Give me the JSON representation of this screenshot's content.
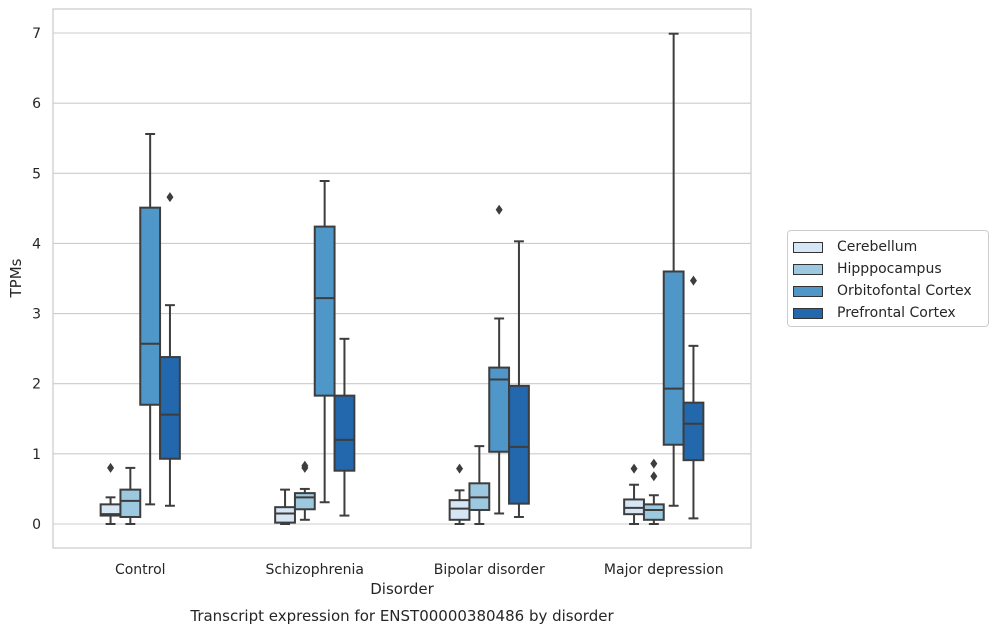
{
  "chart_data": {
    "type": "box",
    "xlabel": "Disorder",
    "ylabel": "TPMs",
    "caption": "Transcript expression for ENST00000380486 by disorder",
    "categories": [
      "Control",
      "Schizophrenia",
      "Bipolar disorder",
      "Major depression"
    ],
    "ylim": [
      -0.33,
      7.35
    ],
    "yticks": [
      0,
      1,
      2,
      3,
      4,
      5,
      6,
      7
    ],
    "grid": "horizontal",
    "legend_position": "right",
    "series": [
      {
        "name": "Cerebellum",
        "color": "#d6e6f4",
        "boxes": [
          {
            "whislo": 0.0,
            "q1": 0.12,
            "med": 0.14,
            "q3": 0.28,
            "whishi": 0.38,
            "fliers": [
              0.8
            ]
          },
          {
            "whislo": 0.0,
            "q1": 0.02,
            "med": 0.15,
            "q3": 0.24,
            "whishi": 0.49,
            "fliers": []
          },
          {
            "whislo": 0.0,
            "q1": 0.06,
            "med": 0.22,
            "q3": 0.34,
            "whishi": 0.48,
            "fliers": [
              0.79
            ]
          },
          {
            "whislo": 0.0,
            "q1": 0.14,
            "med": 0.23,
            "q3": 0.35,
            "whishi": 0.56,
            "fliers": [
              0.79
            ]
          }
        ]
      },
      {
        "name": "Hipppocampus",
        "color": "#9dc9e0",
        "boxes": [
          {
            "whislo": 0.0,
            "q1": 0.1,
            "med": 0.33,
            "q3": 0.49,
            "whishi": 0.8,
            "fliers": []
          },
          {
            "whislo": 0.06,
            "q1": 0.21,
            "med": 0.38,
            "q3": 0.44,
            "whishi": 0.5,
            "fliers": [
              0.8,
              0.83
            ]
          },
          {
            "whislo": 0.0,
            "q1": 0.2,
            "med": 0.38,
            "q3": 0.58,
            "whishi": 1.11,
            "fliers": []
          },
          {
            "whislo": 0.0,
            "q1": 0.06,
            "med": 0.2,
            "q3": 0.28,
            "whishi": 0.41,
            "fliers": [
              0.68,
              0.86
            ]
          }
        ]
      },
      {
        "name": "Orbitofontal Cortex",
        "color": "#5097c9",
        "boxes": [
          {
            "whislo": 0.28,
            "q1": 1.7,
            "med": 2.57,
            "q3": 4.51,
            "whishi": 5.56,
            "fliers": []
          },
          {
            "whislo": 0.31,
            "q1": 1.83,
            "med": 3.22,
            "q3": 4.24,
            "whishi": 4.89,
            "fliers": []
          },
          {
            "whislo": 0.15,
            "q1": 1.03,
            "med": 2.06,
            "q3": 2.23,
            "whishi": 2.93,
            "fliers": [
              4.48
            ]
          },
          {
            "whislo": 0.26,
            "q1": 1.13,
            "med": 1.93,
            "q3": 3.6,
            "whishi": 6.99,
            "fliers": []
          }
        ]
      },
      {
        "name": "Prefrontal Cortex",
        "color": "#2367ac",
        "boxes": [
          {
            "whislo": 0.26,
            "q1": 0.93,
            "med": 1.56,
            "q3": 2.38,
            "whishi": 3.12,
            "fliers": [
              4.66
            ]
          },
          {
            "whislo": 0.12,
            "q1": 0.76,
            "med": 1.2,
            "q3": 1.83,
            "whishi": 2.64,
            "fliers": []
          },
          {
            "whislo": 0.1,
            "q1": 0.29,
            "med": 1.1,
            "q3": 1.97,
            "whishi": 4.03,
            "fliers": []
          },
          {
            "whislo": 0.08,
            "q1": 0.91,
            "med": 1.43,
            "q3": 1.73,
            "whishi": 2.54,
            "fliers": [
              3.47
            ]
          }
        ]
      }
    ]
  }
}
